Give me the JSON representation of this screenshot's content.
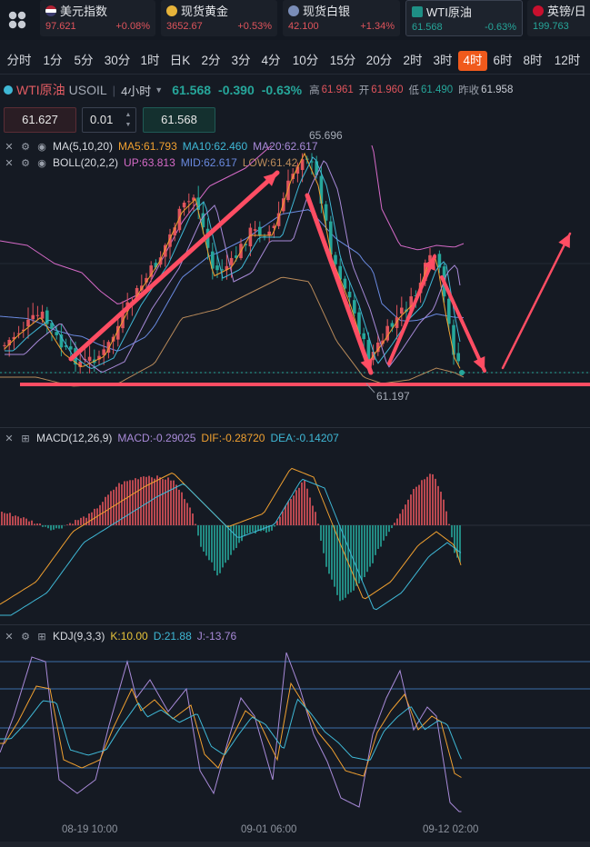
{
  "tickers": [
    {
      "name": "美元指数",
      "price": "97.621",
      "change": "+0.08%",
      "dir": "up",
      "flag": "us-flag-icon"
    },
    {
      "name": "现货黄金",
      "price": "3652.67",
      "change": "+0.53%",
      "dir": "up",
      "flag": "gold-coin-icon"
    },
    {
      "name": "现货白银",
      "price": "42.100",
      "change": "+1.34%",
      "dir": "up",
      "flag": "silver-coin-icon"
    },
    {
      "name": "WTI原油",
      "price": "61.568",
      "change": "-0.63%",
      "dir": "down",
      "flag": "oil-icon"
    },
    {
      "name": "英镑/日",
      "price": "199.763",
      "change": "",
      "dir": "down",
      "flag": "uk-flag-icon"
    }
  ],
  "periods": [
    "分时",
    "1分",
    "5分",
    "30分",
    "1时",
    "日K",
    "2分",
    "3分",
    "4分",
    "10分",
    "15分",
    "20分",
    "2时",
    "3时",
    "4时",
    "6时",
    "8时",
    "12时"
  ],
  "active_period": "4时",
  "symbol": {
    "name": "WTI原油",
    "code": "USOIL",
    "interval": "4小时",
    "price": "61.568",
    "change": "-0.390",
    "change_pct": "-0.63%",
    "high_label": "高",
    "high": "61.961",
    "open_label": "开",
    "open": "61.960",
    "low_label": "低",
    "low": "61.490",
    "prev_label": "昨收",
    "prev": "61.958"
  },
  "order": {
    "sell": "61.627",
    "qty": "0.01",
    "buy": "61.568"
  },
  "ma_legend": {
    "name": "MA(5,10,20)",
    "ma5": "MA5:61.793",
    "ma10": "MA10:62.460",
    "ma20": "MA20:62.617"
  },
  "boll_legend": {
    "name": "BOLL(20,2,2)",
    "up": "UP:63.813",
    "mid": "MID:62.617",
    "low": "LOW:61.42"
  },
  "macd_legend": {
    "name": "MACD(12,26,9)",
    "macd": "MACD:-0.29025",
    "dif": "DIF:-0.28720",
    "dea": "DEA:-0.14207"
  },
  "kdj_legend": {
    "name": "KDJ(9,3,3)",
    "k": "K:10.00",
    "d": "D:21.88",
    "j": "J:-13.76"
  },
  "chart_data": {
    "type": "candlestick",
    "high_mark": "65.696",
    "low_mark": "61.197",
    "x_labels": [
      "08-19 10:00",
      "09-01 06:00",
      "09-12 02:00"
    ],
    "colors": {
      "up": "#e0545c",
      "down": "#26a69a",
      "annotation": "#ff4d63",
      "ma5": "#f0a030",
      "ma10": "#3fb8d6",
      "ma20": "#a88ad8",
      "boll_up": "#d56ac7",
      "boll_mid": "#6a8ae0",
      "boll_low": "#b88a5a"
    }
  }
}
